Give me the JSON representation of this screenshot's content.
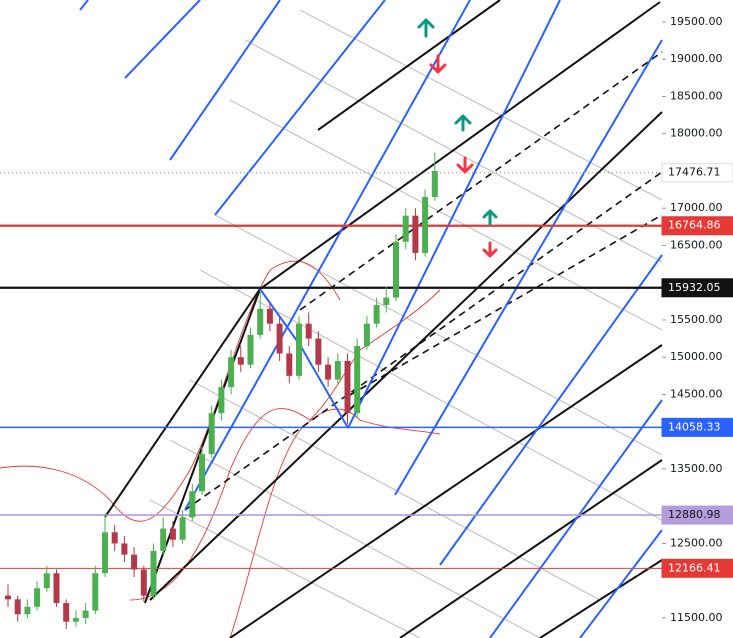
{
  "chart_data": {
    "type": "candlestick",
    "up_color": "#4caf50",
    "down_color": "#b2384a",
    "ylim": [
      11231,
      19795
    ],
    "yticks": [
      {
        "value": 11500,
        "label": "11500.00"
      },
      {
        "value": 12500,
        "label": "12500.00"
      },
      {
        "value": 13500,
        "label": "13500.00"
      },
      {
        "value": 14500,
        "label": "14500.00"
      },
      {
        "value": 15000,
        "label": "15000.00"
      },
      {
        "value": 15500,
        "label": "15500.00"
      },
      {
        "value": 16500,
        "label": "16500.00"
      },
      {
        "value": 17000,
        "label": "17000.00"
      },
      {
        "value": 18000,
        "label": "18000.00"
      },
      {
        "value": 18500,
        "label": "18500.00"
      },
      {
        "value": 19000,
        "label": "19000.00"
      },
      {
        "value": 19500,
        "label": "19500.00"
      }
    ],
    "levels": [
      {
        "value": 17476.71,
        "color": "#b0b0b0",
        "tag_color": "#ffffff",
        "text_color": "#131722",
        "style": "dotted"
      },
      {
        "value": 16764.86,
        "color": "#e53935",
        "tag_color": "#e53935",
        "text_color": "#ffffff",
        "style": "thick"
      },
      {
        "value": 15932.05,
        "color": "#111111",
        "tag_color": "#111111",
        "text_color": "#ffffff",
        "style": "thick"
      },
      {
        "value": 14058.33,
        "color": "#2962ff",
        "tag_color": "#2962ff",
        "text_color": "#ffffff",
        "style": "solid"
      },
      {
        "value": 12880.98,
        "color": "#b39ddb",
        "tag_color": "#b39ddb",
        "text_color": "#131722",
        "style": "solid"
      },
      {
        "value": 12166.41,
        "color": "#e53935",
        "tag_color": "#e53935",
        "text_color": "#ffffff",
        "style": "thin"
      }
    ],
    "candles": [
      [
        11800,
        11950,
        11650,
        11750
      ],
      [
        11750,
        11800,
        11450,
        11550
      ],
      [
        11550,
        11750,
        11500,
        11650
      ],
      [
        11650,
        12000,
        11600,
        11900
      ],
      [
        11900,
        12200,
        11850,
        12100
      ],
      [
        12100,
        12150,
        11650,
        11700
      ],
      [
        11700,
        11750,
        11350,
        11450
      ],
      [
        11450,
        11600,
        11380,
        11500
      ],
      [
        11500,
        11700,
        11420,
        11600
      ],
      [
        11600,
        12200,
        11550,
        12100
      ],
      [
        12100,
        12900,
        12050,
        12650
      ],
      [
        12650,
        12750,
        12400,
        12500
      ],
      [
        12500,
        12600,
        12250,
        12350
      ],
      [
        12350,
        12450,
        12050,
        12150
      ],
      [
        12150,
        12200,
        11720,
        11800
      ],
      [
        11800,
        12500,
        11750,
        12400
      ],
      [
        12400,
        12850,
        12350,
        12700
      ],
      [
        12700,
        12800,
        12450,
        12550
      ],
      [
        12550,
        12950,
        12500,
        12850
      ],
      [
        12850,
        13300,
        12800,
        13200
      ],
      [
        13200,
        13800,
        13150,
        13700
      ],
      [
        13700,
        14350,
        13650,
        14250
      ],
      [
        14250,
        14700,
        14150,
        14600
      ],
      [
        14600,
        15100,
        14500,
        15000
      ],
      [
        15000,
        15150,
        14800,
        14900
      ],
      [
        14900,
        15400,
        14850,
        15300
      ],
      [
        15300,
        15900,
        15250,
        15650
      ],
      [
        15650,
        15750,
        15350,
        15450
      ],
      [
        15450,
        15550,
        14950,
        15050
      ],
      [
        15050,
        15150,
        14650,
        14750
      ],
      [
        14750,
        15550,
        14700,
        15450
      ],
      [
        15450,
        15600,
        15150,
        15250
      ],
      [
        15250,
        15350,
        14800,
        14900
      ],
      [
        14900,
        15000,
        14600,
        14700
      ],
      [
        14700,
        15050,
        14650,
        14950
      ],
      [
        14950,
        15050,
        14100,
        14250
      ],
      [
        14250,
        15250,
        14200,
        15150
      ],
      [
        15150,
        15550,
        15100,
        15450
      ],
      [
        15450,
        15800,
        15400,
        15700
      ],
      [
        15700,
        15950,
        15600,
        15800
      ],
      [
        15800,
        16650,
        15750,
        16550
      ],
      [
        16550,
        17000,
        16450,
        16900
      ],
      [
        16900,
        17000,
        16300,
        16400
      ],
      [
        16400,
        17250,
        16350,
        17150
      ],
      [
        17150,
        17750,
        17100,
        17500
      ]
    ]
  }
}
